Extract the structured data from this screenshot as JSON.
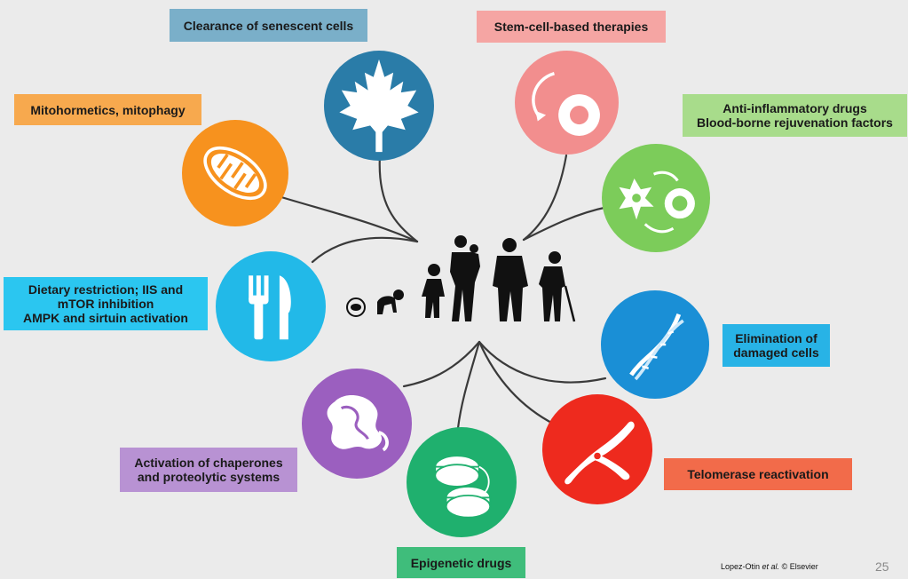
{
  "diagram": {
    "labels": {
      "clearance": [
        "Clearance of senescent cells"
      ],
      "stemcell": [
        "Stem-cell-based therapies"
      ],
      "mito": [
        "Mitohormetics, mitophagy"
      ],
      "antiinfl": [
        "Anti-inflammatory drugs",
        "Blood-borne rejuvenation factors"
      ],
      "dietary": [
        "Dietary restriction; IIS and",
        "mTOR inhibition",
        "AMPK and sirtuin activation"
      ],
      "elimination": [
        "Elimination of",
        "damaged cells"
      ],
      "chaperones": [
        "Activation of chaperones",
        "and proteolytic systems"
      ],
      "telomerase": [
        "Telomerase reactivation"
      ],
      "epigenetic": [
        "Epigenetic drugs"
      ]
    },
    "colors": {
      "clearance": "#2a7ca8",
      "stemcell": "#f28e8e",
      "mito": "#f7921e",
      "antiinfl": "#7ccc5a",
      "dietary": "#22b9e8",
      "elimination": "#1a8fd6",
      "chaperones": "#9b5fbf",
      "telomerase": "#ee2a1e",
      "epigenetic": "#1fb06e"
    },
    "icons": {
      "clearance": "maple-leaf-icon",
      "stemcell": "stem-cell-icon",
      "mito": "mitochondrion-icon",
      "antiinfl": "cell-transformation-icon",
      "dietary": "fork-knife-icon",
      "elimination": "dna-helix-icon",
      "chaperones": "protein-fold-icon",
      "telomerase": "chromosome-icon",
      "epigenetic": "nucleosome-icon"
    },
    "center": "human-lifespan-silhouettes-icon"
  },
  "footer": {
    "credit_authors": "Lopez-Otin",
    "credit_etal": "et al.",
    "credit_rest": "© Elsevier",
    "page_number": "25"
  }
}
